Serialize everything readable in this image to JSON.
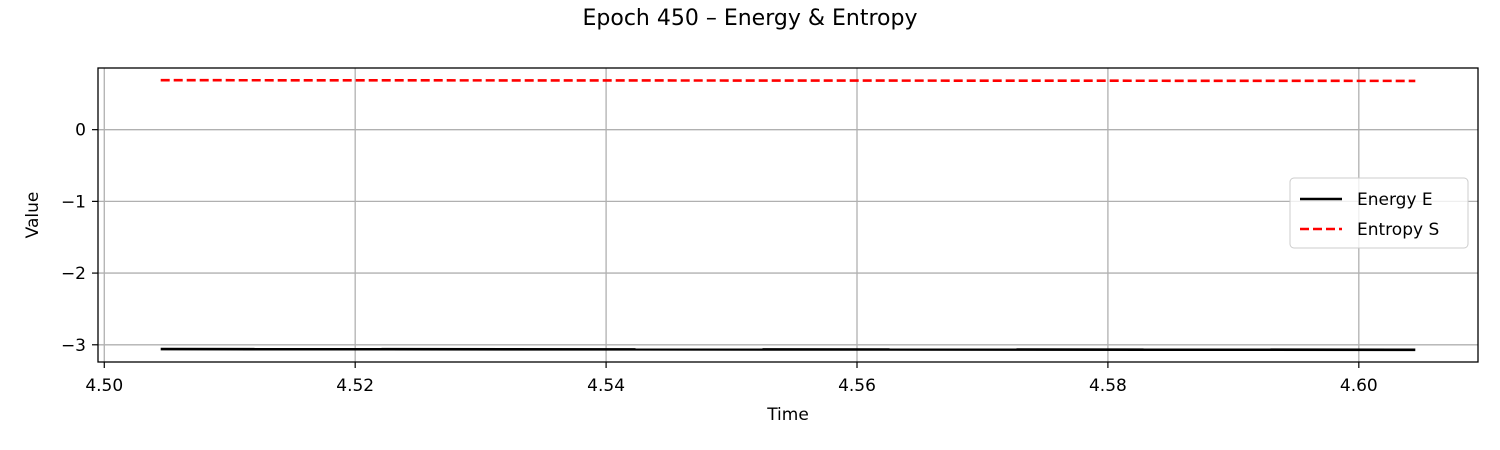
{
  "chart_data": {
    "type": "line",
    "title": "Epoch 450 – Energy & Entropy",
    "xlabel": "Time",
    "ylabel": "Value",
    "xlim": [
      4.4995,
      4.6095
    ],
    "ylim": [
      -3.24,
      0.86
    ],
    "xticks": [
      4.5,
      4.52,
      4.54,
      4.56,
      4.58,
      4.6
    ],
    "xtick_labels": [
      "4.50",
      "4.52",
      "4.54",
      "4.56",
      "4.58",
      "4.60"
    ],
    "yticks": [
      0,
      -1,
      -2,
      -3
    ],
    "ytick_labels": [
      "0",
      "−1",
      "−2",
      "−3"
    ],
    "grid": true,
    "legend_position": "center-right",
    "series": [
      {
        "name": "Energy E",
        "color": "#000000",
        "style": "solid",
        "x": [
          4.5045,
          4.6045
        ],
        "y": [
          -3.06,
          -3.07
        ]
      },
      {
        "name": "Entropy S",
        "color": "#ff0000",
        "style": "dashed",
        "x": [
          4.5045,
          4.6045
        ],
        "y": [
          0.69,
          0.68
        ]
      }
    ]
  }
}
